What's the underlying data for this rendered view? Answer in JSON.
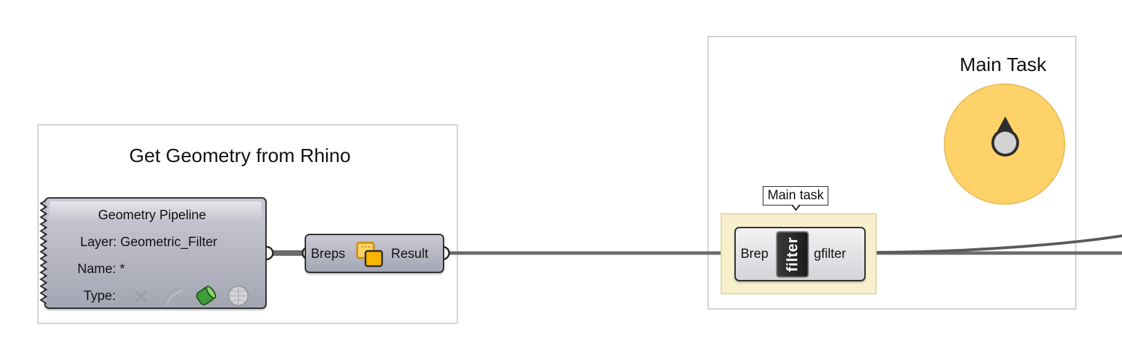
{
  "groups": {
    "rhino": {
      "title": "Get Geometry from Rhino"
    },
    "main": {
      "title": "Main Task"
    }
  },
  "pipeline": {
    "title": "Geometry Pipeline",
    "layer": "Layer: Geometric_Filter",
    "name": "Name: *",
    "type_label": "Type:",
    "type_icons": [
      "point-x-icon",
      "curve-icon",
      "brep-icon",
      "mesh-icon"
    ],
    "active_type": "brep-icon"
  },
  "breps_component": {
    "input": "Breps",
    "output": "Result",
    "icon": "breps-icon"
  },
  "filter_component": {
    "tooltip": "Main task",
    "input": "Brep",
    "icon_text": "filter",
    "output": "gfilter"
  },
  "colors": {
    "component_fill": "#b5b6c2",
    "cluster_background": "#f8efcd",
    "dial_fill": "#fdd268",
    "wire": "#6b6b6b",
    "group_border": "#d2d2d2"
  }
}
